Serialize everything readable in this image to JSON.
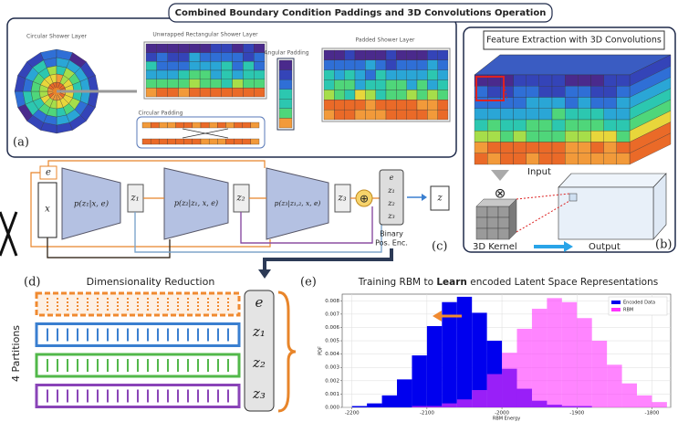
{
  "title": "Combined Boundary Condition Paddings and 3D Convolutions Operation",
  "panel_a": {
    "label": "(a)",
    "circular_layer": "Circular Shower Layer",
    "unwrapped_layer": "Unwrapped Rectangular Shower Layer",
    "angular_padding": "Angular Padding",
    "padded_layer": "Padded Shower Layer",
    "circular_padding": "Circular Padding"
  },
  "panel_b": {
    "label": "(b)",
    "title": "Feature Extraction with 3D Convolutions",
    "input": "Input",
    "operator": "⊗",
    "kernel": "3D Kernel",
    "output": "Output"
  },
  "panel_c": {
    "label": "(c)",
    "inputs": [
      "e",
      "x"
    ],
    "decoders": [
      "p(z₁|x, e)",
      "p(z₂|z₁, x, e)",
      "p(z₃|z₁,₂, x, e)"
    ],
    "latents": [
      "z₁",
      "z₂",
      "z₃"
    ],
    "concat": "⊕",
    "encoded": [
      "e",
      "z₁",
      "z₂",
      "z₃"
    ],
    "encoding": [
      "Binary",
      "Pos. Enc."
    ],
    "output": "z"
  },
  "panel_d": {
    "label": "(d)",
    "title": "Dimensionality Reduction",
    "partitions": "4 Partitions",
    "rows": [
      "e",
      "z₁",
      "z₂",
      "z₃"
    ]
  },
  "panel_e": {
    "label": "(e)",
    "title_parts": [
      "Training RBM to ",
      "Learn",
      " encoded Latent Space Representations"
    ],
    "chart_data": {
      "type": "histogram",
      "xlabel": "RBM Energy",
      "ylabel": "PDF",
      "bins": [
        -2200,
        -2180,
        -2160,
        -2140,
        -2120,
        -2100,
        -2080,
        -2060,
        -2040,
        -2020,
        -2000,
        -1980,
        -1960,
        -1940,
        -1920,
        -1900,
        -1880,
        -1860,
        -1840,
        -1820,
        -1800,
        -1780
      ],
      "series": [
        {
          "name": "Encoded Data",
          "color": "#0000ee",
          "values": [
            0.0001,
            0.0003,
            0.0009,
            0.0021,
            0.0039,
            0.0061,
            0.0079,
            0.0083,
            0.0071,
            0.005,
            0.0029,
            0.0014,
            0.0005,
            0.0002,
            0.0001,
            0.0001,
            0,
            0,
            0,
            0,
            0
          ]
        },
        {
          "name": "RBM",
          "color": "#ff33ff",
          "values": [
            0,
            0,
            0,
            0,
            0.0001,
            0.0001,
            0.0003,
            0.0006,
            0.0013,
            0.0025,
            0.0041,
            0.0059,
            0.0074,
            0.0082,
            0.0079,
            0.0067,
            0.005,
            0.0032,
            0.0018,
            0.0009,
            0.0004
          ]
        }
      ],
      "xlim": [
        -2213,
        -1775
      ],
      "ylim": [
        0,
        0.0085
      ],
      "xticks": [
        -2200,
        -2100,
        -2000,
        -1900,
        -1800
      ],
      "yticks": [
        {
          "value": 0,
          "label": "0.000"
        },
        {
          "value": 0.001,
          "label": "0.001"
        },
        {
          "value": 0.002,
          "label": "0.002"
        },
        {
          "value": 0.003,
          "label": "0.003"
        },
        {
          "value": 0.004,
          "label": "0.004"
        },
        {
          "value": 0.005,
          "label": "0.005"
        },
        {
          "value": 0.006,
          "label": "0.006"
        },
        {
          "value": 0.007,
          "label": "0.007"
        },
        {
          "value": 0.008,
          "label": "0.008"
        }
      ],
      "grid": true,
      "legend": "upper-right"
    }
  }
}
